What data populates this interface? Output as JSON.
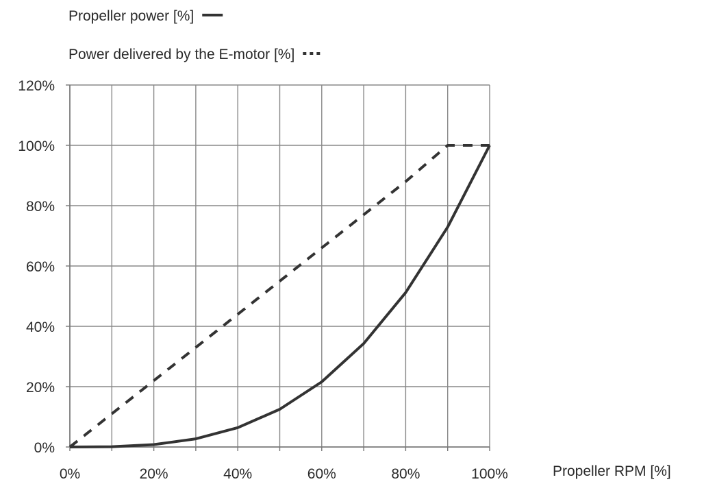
{
  "chart_data": {
    "type": "line",
    "xlabel": "Propeller RPM [%]",
    "ylabel": "",
    "xlim": [
      0,
      100
    ],
    "ylim": [
      0,
      120
    ],
    "x_ticks": [
      "0%",
      "20%",
      "40%",
      "60%",
      "80%",
      "100%"
    ],
    "y_ticks": [
      "0%",
      "20%",
      "40%",
      "60%",
      "80%",
      "100%",
      "120%"
    ],
    "grid": true,
    "legend_position": "top-left",
    "series": [
      {
        "name": "Propeller power [%]",
        "style": "solid",
        "color": "#333333",
        "x": [
          0,
          10,
          20,
          30,
          40,
          50,
          60,
          70,
          80,
          90,
          100
        ],
        "y": [
          0,
          0.1,
          0.8,
          2.7,
          6.4,
          12.5,
          21.6,
          34.3,
          51.2,
          72.9,
          100
        ]
      },
      {
        "name": "Power delivered by the E-motor [%]",
        "style": "dashed",
        "color": "#333333",
        "x": [
          0,
          10,
          20,
          30,
          40,
          50,
          60,
          70,
          80,
          90,
          100
        ],
        "y": [
          0,
          11,
          22,
          33,
          44,
          55,
          66,
          77,
          88,
          100,
          100
        ]
      }
    ]
  }
}
